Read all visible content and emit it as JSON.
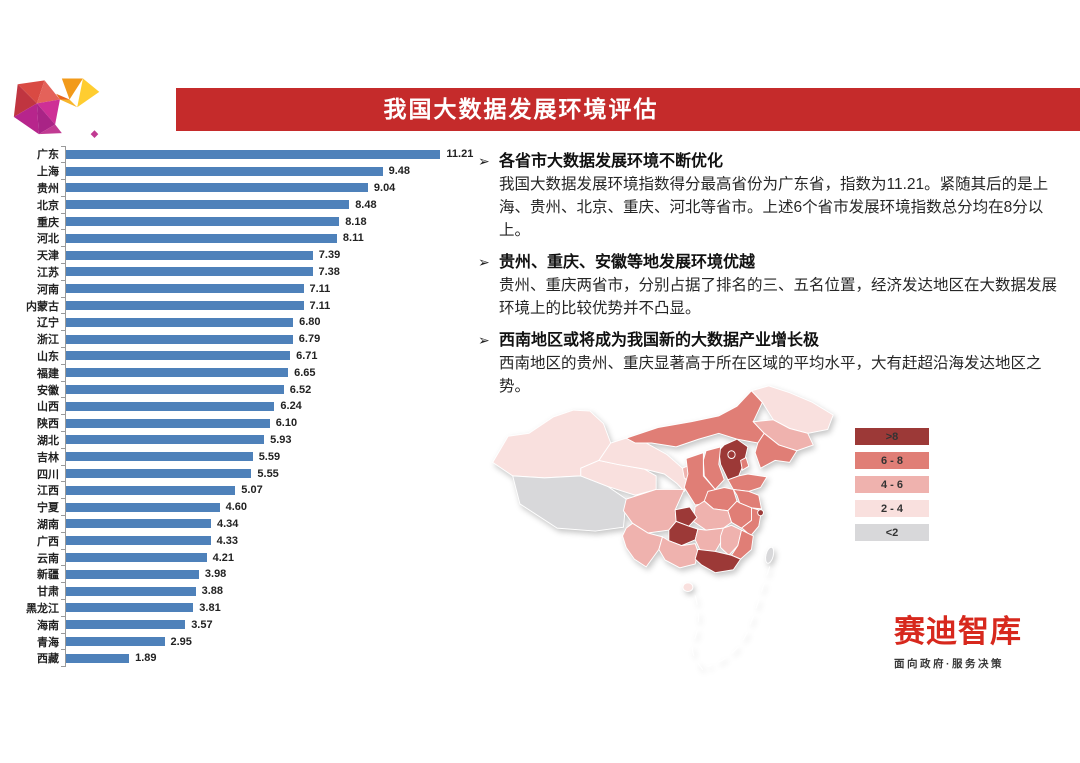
{
  "slide": {
    "title": "我国大数据发展环境评估"
  },
  "chart_data": {
    "type": "bar",
    "orientation": "horizontal",
    "title": "",
    "xlabel": "",
    "ylabel": "",
    "categories": [
      "广东",
      "上海",
      "贵州",
      "北京",
      "重庆",
      "河北",
      "天津",
      "江苏",
      "河南",
      "内蒙古",
      "辽宁",
      "浙江",
      "山东",
      "福建",
      "安徽",
      "山西",
      "陕西",
      "湖北",
      "吉林",
      "四川",
      "江西",
      "宁夏",
      "湖南",
      "广西",
      "云南",
      "新疆",
      "甘肃",
      "黑龙江",
      "海南",
      "青海",
      "西藏"
    ],
    "values": [
      11.21,
      9.48,
      9.04,
      8.48,
      8.18,
      8.11,
      7.39,
      7.38,
      7.11,
      7.11,
      6.8,
      6.79,
      6.71,
      6.65,
      6.52,
      6.24,
      6.1,
      5.93,
      5.59,
      5.55,
      5.07,
      4.6,
      4.34,
      4.33,
      4.21,
      3.98,
      3.88,
      3.81,
      3.57,
      2.95,
      1.89
    ],
    "xlim": [
      0,
      12
    ],
    "grid": false,
    "legend_position": "none",
    "bar_color": "#4E81BA",
    "value_labels": true
  },
  "bullets": [
    {
      "marker": "➢",
      "heading": "各省市大数据发展环境不断优化",
      "body": "我国大数据发展环境指数得分最高省份为广东省，指数为11.21。紧随其后的是上海、贵州、北京、重庆、河北等省市。上述6个省市发展环境指数总分均在8分以上。"
    },
    {
      "marker": "➢",
      "heading": "贵州、重庆、安徽等地发展环境优越",
      "body": "贵州、重庆两省市，分别占据了排名的三、五名位置，经济发达地区在大数据发展环境上的比较优势并不凸显。"
    },
    {
      "marker": "➢",
      "heading": "西南地区或将成为我国新的大数据产业增长极",
      "body": "西南地区的贵州、重庆显著高于所在区域的平均水平，大有赶超沿海发达地区之势。"
    }
  ],
  "map": {
    "legend": [
      {
        "label": ">8",
        "color": "#9C3937"
      },
      {
        "label": "6 - 8",
        "color": "#E07E76"
      },
      {
        "label": "4 - 6",
        "color": "#EFB2AE"
      },
      {
        "label": "2 - 4",
        "color": "#F9E0DE"
      },
      {
        "label": "<2",
        "color": "#D8D8DA"
      }
    ],
    "buckets": {
      ">8": [
        "广东",
        "上海",
        "贵州",
        "北京",
        "重庆",
        "河北"
      ],
      "6 - 8": [
        "天津",
        "江苏",
        "河南",
        "内蒙古",
        "辽宁",
        "浙江",
        "山东",
        "福建",
        "安徽",
        "山西",
        "陕西"
      ],
      "4 - 6": [
        "湖北",
        "吉林",
        "四川",
        "江西",
        "宁夏",
        "湖南",
        "广西",
        "云南"
      ],
      "2 - 4": [
        "新疆",
        "甘肃",
        "黑龙江",
        "海南",
        "青海"
      ],
      "<2": [
        "西藏",
        "台湾"
      ]
    }
  },
  "brand": {
    "name": "赛迪智库",
    "tagline": "面向政府·服务决策",
    "color": "#D7281D"
  },
  "colors": {
    "banner": "#C52B2B",
    "bar": "#4E81BA",
    "axis": "#9A9A9A"
  }
}
